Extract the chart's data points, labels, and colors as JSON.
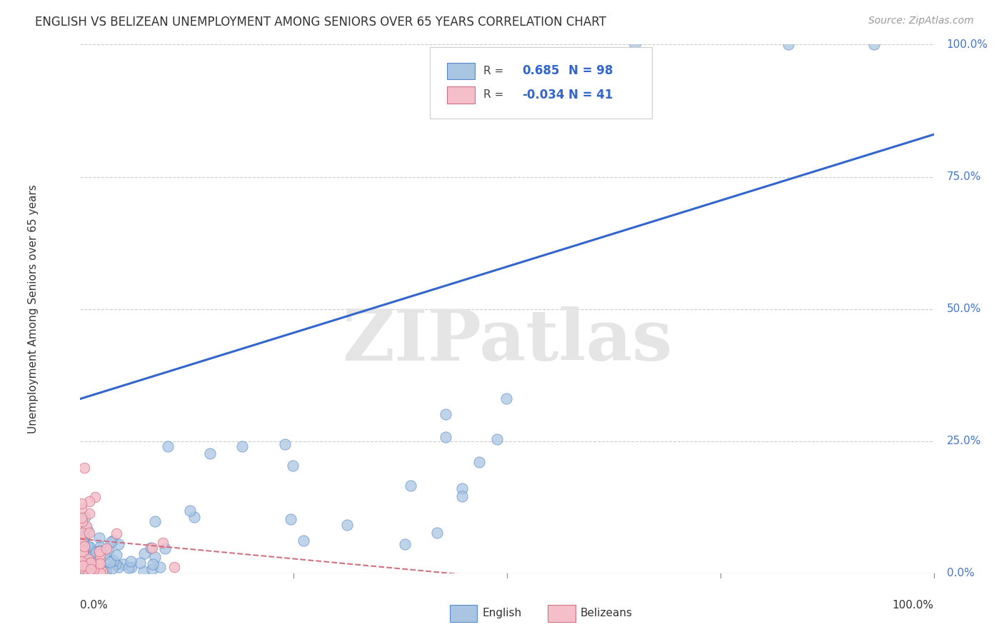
{
  "title": "ENGLISH VS BELIZEAN UNEMPLOYMENT AMONG SENIORS OVER 65 YEARS CORRELATION CHART",
  "source": "Source: ZipAtlas.com",
  "ylabel": "Unemployment Among Seniors over 65 years",
  "watermark": "ZIPatlas",
  "legend_english": "English",
  "legend_belizeans": "Belizeans",
  "english_R": 0.685,
  "english_N": 98,
  "belizean_R": -0.034,
  "belizean_N": 41,
  "english_color": "#aac5e2",
  "english_edge_color": "#5588cc",
  "english_line_color": "#3366cc",
  "belizean_color": "#f5bfca",
  "belizean_edge_color": "#d07080",
  "belizean_line_color": "#d07080",
  "background_color": "#ffffff",
  "grid_color": "#cccccc",
  "axis_label_color": "#4477cc",
  "tick_label_color": "#333333",
  "watermark_color": "#e5e5e5"
}
